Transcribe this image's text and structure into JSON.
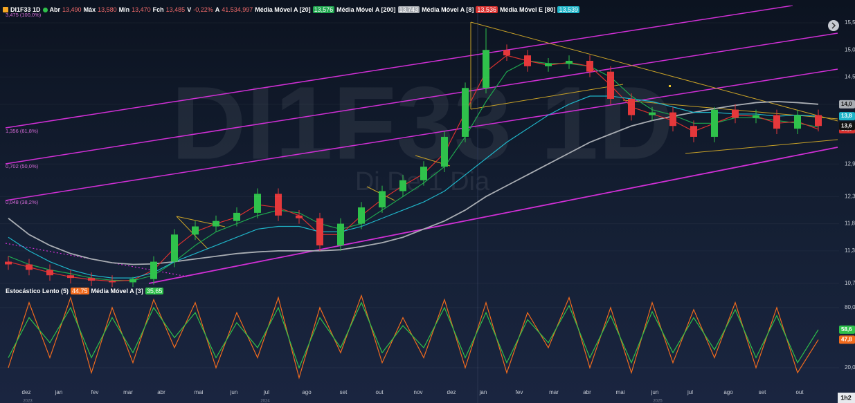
{
  "chart_data": {
    "type": "candlestick",
    "title": "DI1F33 1D",
    "watermark": "DI1F33 1D",
    "watermark_subtitle": "Di De 1 Dia",
    "ohlc": [
      {
        "label": "Abr",
        "value": "13,490"
      },
      {
        "label": "Máx",
        "value": "13,580"
      },
      {
        "label": "Mín",
        "value": "13,470"
      },
      {
        "label": "Fch",
        "value": "13,485"
      },
      {
        "label": "V",
        "value": "-0,22%"
      },
      {
        "label": "A",
        "value": "41.534,997"
      }
    ],
    "candles": {
      "up_color": "#2fc14b",
      "down_color": "#e5383b",
      "open": [
        11.1,
        11.05,
        10.95,
        10.85,
        10.8,
        10.75,
        10.72,
        10.78,
        11.1,
        11.6,
        11.75,
        11.85,
        12.0,
        12.35,
        11.95,
        11.9,
        11.4,
        11.8,
        12.1,
        12.4,
        12.6,
        12.85,
        13.4,
        14.3,
        15.0,
        14.9,
        14.7,
        14.75,
        14.8,
        14.6,
        14.1,
        13.8,
        13.85,
        13.6,
        13.4,
        13.9,
        13.75,
        13.8,
        13.55,
        13.8
      ],
      "high": [
        11.2,
        11.15,
        11.05,
        10.95,
        10.9,
        10.85,
        10.82,
        11.2,
        11.7,
        11.85,
        11.95,
        12.1,
        12.45,
        12.45,
        12.05,
        12.0,
        11.9,
        12.2,
        12.5,
        12.7,
        12.95,
        13.5,
        14.4,
        15.4,
        15.1,
        15.0,
        14.85,
        14.9,
        14.9,
        14.7,
        14.2,
        13.95,
        13.95,
        13.7,
        13.95,
        14.0,
        13.9,
        13.9,
        13.9,
        13.9
      ],
      "low": [
        10.95,
        10.85,
        10.75,
        10.7,
        10.65,
        10.62,
        10.62,
        10.68,
        11.0,
        11.5,
        11.65,
        11.75,
        11.9,
        11.85,
        11.8,
        11.3,
        11.3,
        11.7,
        12.0,
        12.3,
        12.5,
        12.75,
        13.3,
        14.2,
        14.8,
        14.6,
        14.6,
        14.65,
        14.5,
        14.0,
        13.7,
        13.7,
        13.5,
        13.3,
        13.3,
        13.65,
        13.65,
        13.45,
        13.45,
        13.5
      ],
      "close": [
        11.05,
        10.95,
        10.85,
        10.8,
        10.75,
        10.72,
        10.78,
        11.1,
        11.6,
        11.75,
        11.85,
        12.0,
        12.35,
        11.95,
        11.9,
        11.4,
        11.8,
        12.1,
        12.4,
        12.6,
        12.85,
        13.4,
        14.3,
        15.0,
        14.9,
        14.7,
        14.75,
        14.8,
        14.6,
        14.1,
        13.8,
        13.85,
        13.6,
        13.4,
        13.9,
        13.75,
        13.8,
        13.55,
        13.8,
        13.6
      ],
      "last_label": "13,6"
    },
    "series": [
      {
        "name": "Média Móvel A [20]",
        "value_label": "13,576",
        "color": "#1fa74f",
        "values": [
          11.2,
          11.05,
          10.95,
          10.88,
          10.8,
          10.76,
          10.75,
          10.85,
          11.1,
          11.4,
          11.65,
          11.8,
          11.95,
          12.05,
          12.0,
          11.8,
          11.7,
          11.8,
          12.05,
          12.3,
          12.55,
          12.85,
          13.4,
          14.05,
          14.6,
          14.8,
          14.75,
          14.75,
          14.7,
          14.5,
          14.15,
          13.9,
          13.8,
          13.65,
          13.65,
          13.75,
          13.75,
          13.7,
          13.65,
          13.58
        ]
      },
      {
        "name": "Média Móvel A [200]",
        "value_label": "13,743",
        "color": "#a9adb3",
        "last_label": "14,0",
        "values": [
          11.9,
          11.6,
          11.4,
          11.25,
          11.15,
          11.08,
          11.05,
          11.06,
          11.1,
          11.15,
          11.2,
          11.25,
          11.28,
          11.3,
          11.3,
          11.3,
          11.32,
          11.38,
          11.45,
          11.55,
          11.7,
          11.85,
          12.05,
          12.3,
          12.5,
          12.7,
          12.9,
          13.1,
          13.3,
          13.45,
          13.6,
          13.7,
          13.78,
          13.85,
          13.92,
          13.98,
          14.03,
          14.05,
          14.03,
          14.0
        ]
      },
      {
        "name": "Média Móvel A [8]",
        "value_label": "13,536",
        "color": "#d9312f",
        "last_label": "13,5",
        "values": [
          11.1,
          11.0,
          10.9,
          10.82,
          10.77,
          10.74,
          10.76,
          10.95,
          11.35,
          11.65,
          11.8,
          11.92,
          12.15,
          12.1,
          11.95,
          11.6,
          11.6,
          11.95,
          12.25,
          12.5,
          12.72,
          13.1,
          13.85,
          14.6,
          14.9,
          14.8,
          14.72,
          14.77,
          14.7,
          14.35,
          13.95,
          13.82,
          13.7,
          13.5,
          13.65,
          13.8,
          13.78,
          13.65,
          13.68,
          13.54
        ]
      },
      {
        "name": "Média Móvel E [80]",
        "value_label": "13,539",
        "color": "#1fb5c9",
        "last_label": "13,8",
        "values": [
          11.55,
          11.3,
          11.1,
          10.95,
          10.85,
          10.8,
          10.8,
          10.9,
          11.1,
          11.25,
          11.4,
          11.55,
          11.7,
          11.75,
          11.75,
          11.65,
          11.65,
          11.75,
          11.9,
          12.05,
          12.2,
          12.4,
          12.7,
          13.0,
          13.3,
          13.55,
          13.8,
          14.0,
          14.15,
          14.15,
          14.1,
          14.05,
          13.95,
          13.85,
          13.85,
          13.82,
          13.82,
          13.78,
          13.8,
          13.78
        ]
      }
    ],
    "ylim": [
      10.7,
      15.5
    ],
    "yticks": [
      {
        "value": 15.5,
        "label": "15,5"
      },
      {
        "value": 15.0,
        "label": "15,0"
      },
      {
        "value": 14.5,
        "label": "14,5"
      },
      {
        "value": 14.0,
        "label": "14,0"
      },
      {
        "value": 12.9,
        "label": "12,9"
      },
      {
        "value": 12.3,
        "label": "12,3"
      },
      {
        "value": 11.8,
        "label": "11,8"
      },
      {
        "value": 11.3,
        "label": "11,3"
      },
      {
        "value": 10.7,
        "label": "10,7"
      }
    ],
    "fibonacci_labels": [
      "3,475 (100,0%)",
      "1,356 (61,8%)",
      "0,702 (50,0%)",
      "0,048 (38,2%)"
    ],
    "stochastic": {
      "name": "Estocástico Lento (5)",
      "value_label": "44,75",
      "color": "#f26b1d",
      "last_label": "47,8",
      "values": [
        20,
        85,
        30,
        90,
        15,
        80,
        25,
        88,
        40,
        85,
        20,
        75,
        30,
        90,
        10,
        80,
        35,
        92,
        25,
        70,
        30,
        88,
        20,
        85,
        15,
        75,
        40,
        90,
        20,
        80,
        15,
        85,
        25,
        78,
        30,
        85,
        20,
        80,
        15,
        48
      ],
      "signal": {
        "name": "Média Móvel A [3]",
        "value_label": "35,65",
        "color": "#2fc14b",
        "last_label": "58,6",
        "values": [
          30,
          70,
          45,
          80,
          30,
          70,
          35,
          80,
          50,
          75,
          30,
          65,
          40,
          80,
          20,
          70,
          40,
          85,
          35,
          62,
          40,
          80,
          30,
          75,
          25,
          68,
          45,
          82,
          30,
          72,
          25,
          76,
          35,
          70,
          38,
          78,
          30,
          72,
          25,
          58
        ]
      },
      "ylim": [
        0,
        100
      ],
      "yticks": [
        {
          "value": 80,
          "label": "80,0"
        },
        {
          "value": 20,
          "label": "20,0"
        }
      ]
    },
    "x_labels": [
      "dez",
      "jan",
      "fev",
      "mar",
      "abr",
      "mai",
      "jun",
      "jul",
      "ago",
      "set",
      "out",
      "nov",
      "dez",
      "jan",
      "fev",
      "mar",
      "abr",
      "mai",
      "jun",
      "jul",
      "ago",
      "set",
      "out"
    ],
    "years": [
      "2023",
      "2024",
      "2025"
    ],
    "timeframe": "1h2"
  }
}
